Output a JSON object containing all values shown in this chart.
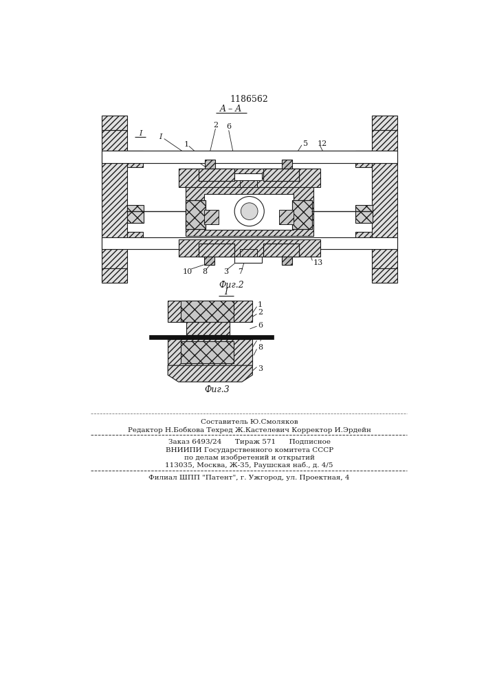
{
  "patent_number": "1186562",
  "fig2_label": "A – A",
  "fig2_caption": "Фиг.2",
  "fig3_label": "I",
  "fig3_caption": "Фиг.3",
  "bg_color": "#ffffff",
  "line_color": "#1a1a1a",
  "footer_line1": "Составитель Ю.Смоляков",
  "footer_line2": "Редактор Н.Бобкова Техред Ж.Кастелевич Корректор И.Эрдейн",
  "footer_line3": "Заказ 6493/24      Тираж 571      Подписное",
  "footer_line4": "ВНИИПИ Государственного комитета СССР",
  "footer_line5": "по делам изобретений и открытий",
  "footer_line6": "113035, Москва, Ж-35, Раушская наб., д. 4/5",
  "footer_line7": "Филиал ШПП \"Патент\", г. Ужгород, ул. Проектная, 4"
}
